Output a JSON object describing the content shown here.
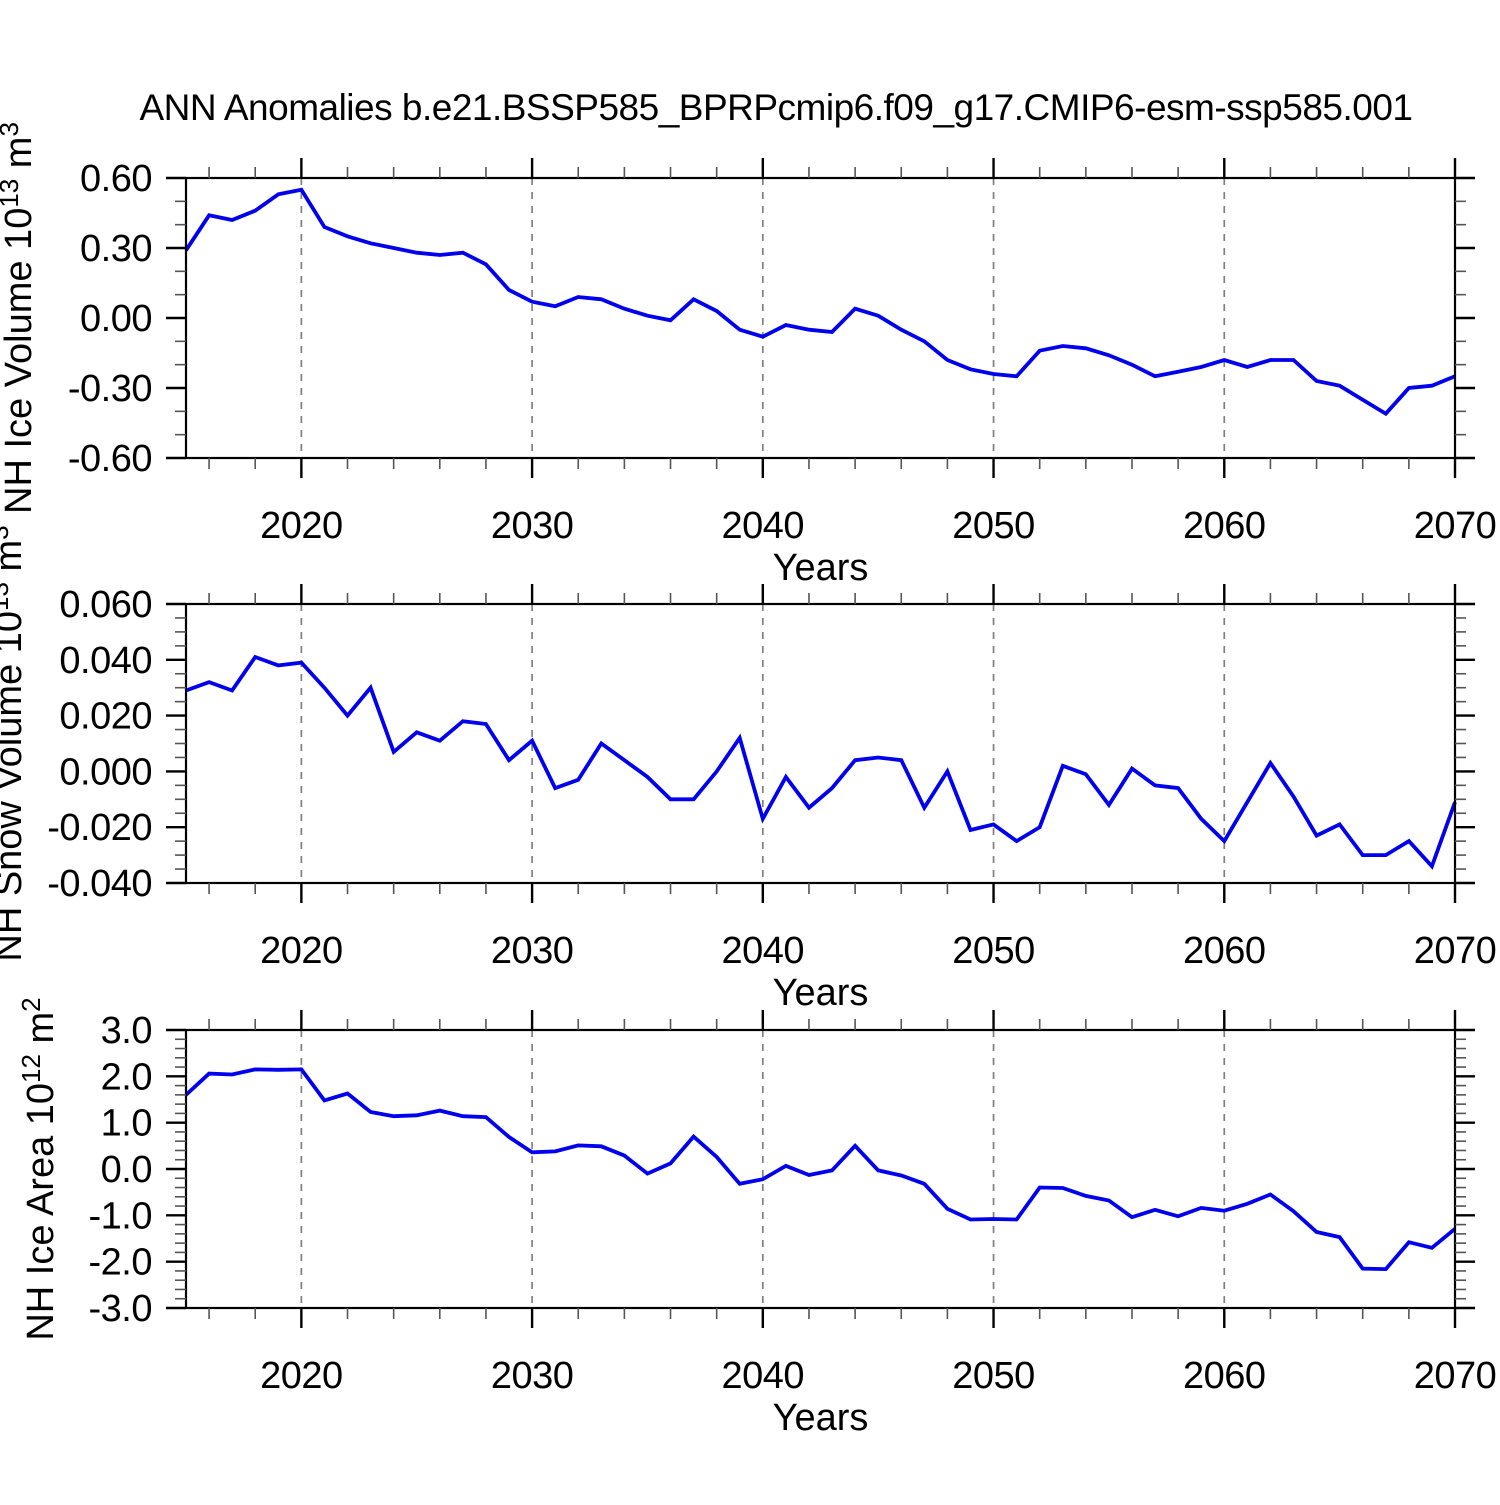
{
  "title": "ANN Anomalies b.e21.BSSP585_BPRPcmip6.f09_g17.CMIP6-esm-ssp585.001",
  "colors": {
    "background": "#ffffff",
    "line": "#0000ee",
    "grid": "#808080",
    "axis": "#000000",
    "minor_tick": "#555555"
  },
  "x_years": [
    2015,
    2016,
    2017,
    2018,
    2019,
    2020,
    2021,
    2022,
    2023,
    2024,
    2025,
    2026,
    2027,
    2028,
    2029,
    2030,
    2031,
    2032,
    2033,
    2034,
    2035,
    2036,
    2037,
    2038,
    2039,
    2040,
    2041,
    2042,
    2043,
    2044,
    2045,
    2046,
    2047,
    2048,
    2049,
    2050,
    2051,
    2052,
    2053,
    2054,
    2055,
    2056,
    2057,
    2058,
    2059,
    2060,
    2061,
    2062,
    2063,
    2064,
    2065,
    2066,
    2067,
    2068,
    2069,
    2070
  ],
  "chart_data": [
    {
      "type": "line",
      "title": "ANN Anomalies b.e21.BSSP585_BPRPcmip6.f09_g17.CMIP6-esm-ssp585.001",
      "ylabel_text": "NH Ice Volume 10^13 m^3",
      "ylabel_parts": [
        {
          "t": "NH Ice Volume 10"
        },
        {
          "t": "13",
          "sup": true
        },
        {
          "t": " m"
        },
        {
          "t": "3",
          "sup": true
        }
      ],
      "xlabel": "Years",
      "ylim": [
        -0.6,
        0.6
      ],
      "ytick_values": [
        0.6,
        0.3,
        0.0,
        -0.3,
        -0.6
      ],
      "ytick_labels": [
        "0.60",
        "0.30",
        "0.00",
        "-0.30",
        "-0.60"
      ],
      "y_minor_step": 0.1,
      "xtick_values": [
        2020,
        2030,
        2040,
        2050,
        2060,
        2070
      ],
      "xtick_labels": [
        "2020",
        "2030",
        "2040",
        "2050",
        "2060",
        "2070"
      ],
      "x_minor_step": 2,
      "grid_years": [
        2020,
        2030,
        2040,
        2050,
        2060
      ],
      "legend": "none",
      "grid": "vertical-dashed",
      "values": [
        0.29,
        0.44,
        0.42,
        0.46,
        0.53,
        0.55,
        0.39,
        0.35,
        0.32,
        0.3,
        0.28,
        0.27,
        0.28,
        0.23,
        0.12,
        0.07,
        0.05,
        0.09,
        0.08,
        0.04,
        0.01,
        -0.01,
        0.08,
        0.03,
        -0.05,
        -0.08,
        -0.03,
        -0.05,
        -0.06,
        0.04,
        0.01,
        -0.05,
        -0.1,
        -0.18,
        -0.22,
        -0.24,
        -0.25,
        -0.14,
        -0.12,
        -0.13,
        -0.16,
        -0.2,
        -0.25,
        -0.23,
        -0.21,
        -0.18,
        -0.21,
        -0.18,
        -0.18,
        -0.27,
        -0.29,
        -0.35,
        -0.41,
        -0.3,
        -0.29,
        -0.25
      ]
    },
    {
      "type": "line",
      "title": "",
      "ylabel_text": "NH Snow Volume 10^13 m^3",
      "ylabel_parts": [
        {
          "t": "NH Snow Volume 10"
        },
        {
          "t": "13",
          "sup": true
        },
        {
          "t": " m"
        },
        {
          "t": "3",
          "sup": true
        }
      ],
      "xlabel": "Years",
      "ylim": [
        -0.04,
        0.06
      ],
      "ytick_values": [
        0.06,
        0.04,
        0.02,
        0.0,
        -0.02,
        -0.04
      ],
      "ytick_labels": [
        "0.060",
        "0.040",
        "0.020",
        "0.000",
        "-0.020",
        "-0.040"
      ],
      "y_minor_step": 0.005,
      "xtick_values": [
        2020,
        2030,
        2040,
        2050,
        2060,
        2070
      ],
      "xtick_labels": [
        "2020",
        "2030",
        "2040",
        "2050",
        "2060",
        "2070"
      ],
      "x_minor_step": 2,
      "grid_years": [
        2020,
        2030,
        2040,
        2050,
        2060
      ],
      "legend": "none",
      "grid": "vertical-dashed",
      "values": [
        0.029,
        0.032,
        0.029,
        0.041,
        0.038,
        0.039,
        0.03,
        0.02,
        0.03,
        0.007,
        0.014,
        0.011,
        0.018,
        0.017,
        0.004,
        0.011,
        -0.006,
        -0.003,
        0.01,
        0.004,
        -0.002,
        -0.01,
        -0.01,
        0.0,
        0.012,
        -0.017,
        -0.002,
        -0.013,
        -0.006,
        0.004,
        0.005,
        0.004,
        -0.013,
        0.0,
        -0.021,
        -0.019,
        -0.025,
        -0.02,
        0.002,
        -0.001,
        -0.012,
        0.001,
        -0.005,
        -0.006,
        -0.017,
        -0.025,
        -0.011,
        0.003,
        -0.009,
        -0.023,
        -0.019,
        -0.03,
        -0.03,
        -0.025,
        -0.034,
        -0.011
      ]
    },
    {
      "type": "line",
      "title": "",
      "ylabel_text": "NH Ice Area 10^12 m^2",
      "ylabel_parts": [
        {
          "t": "NH Ice Area 10"
        },
        {
          "t": "12",
          "sup": true
        },
        {
          "t": " m"
        },
        {
          "t": "2",
          "sup": true
        }
      ],
      "xlabel": "Years",
      "ylim": [
        -3.0,
        3.0
      ],
      "ytick_values": [
        3.0,
        2.0,
        1.0,
        0.0,
        -1.0,
        -2.0,
        -3.0
      ],
      "ytick_labels": [
        "3.0",
        "2.0",
        "1.0",
        "0.0",
        "-1.0",
        "-2.0",
        "-3.0"
      ],
      "y_minor_step": 0.2,
      "xtick_values": [
        2020,
        2030,
        2040,
        2050,
        2060,
        2070
      ],
      "xtick_labels": [
        "2020",
        "2030",
        "2040",
        "2050",
        "2060",
        "2070"
      ],
      "x_minor_step": 2,
      "grid_years": [
        2020,
        2030,
        2040,
        2050,
        2060
      ],
      "legend": "none",
      "grid": "vertical-dashed",
      "values": [
        1.6,
        2.06,
        2.04,
        2.15,
        2.14,
        2.15,
        1.48,
        1.63,
        1.23,
        1.14,
        1.16,
        1.26,
        1.14,
        1.12,
        0.69,
        0.36,
        0.38,
        0.51,
        0.49,
        0.29,
        -0.1,
        0.12,
        0.7,
        0.26,
        -0.32,
        -0.22,
        0.07,
        -0.13,
        -0.03,
        0.5,
        -0.03,
        -0.14,
        -0.32,
        -0.86,
        -1.09,
        -1.08,
        -1.09,
        -0.4,
        -0.41,
        -0.58,
        -0.68,
        -1.04,
        -0.88,
        -1.02,
        -0.84,
        -0.9,
        -0.75,
        -0.55,
        -0.91,
        -1.36,
        -1.47,
        -2.15,
        -2.16,
        -1.58,
        -1.7,
        -1.29
      ]
    }
  ]
}
